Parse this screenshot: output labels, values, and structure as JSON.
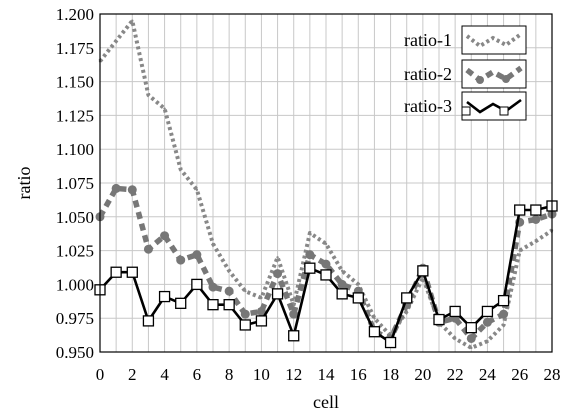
{
  "chart_data": {
    "type": "line",
    "xlabel": "cell",
    "ylabel": "ratio",
    "xlim": [
      0,
      28
    ],
    "ylim": [
      0.95,
      1.2
    ],
    "x_ticks": [
      0,
      2,
      4,
      6,
      8,
      10,
      12,
      14,
      16,
      18,
      20,
      22,
      24,
      26,
      28
    ],
    "y_ticks": [
      0.95,
      0.975,
      1.0,
      1.025,
      1.05,
      1.075,
      1.1,
      1.125,
      1.15,
      1.175,
      1.2
    ],
    "y_tick_labels": [
      "0.950",
      "0.975",
      "1.000",
      "1.025",
      "1.050",
      "1.075",
      "1.100",
      "1.125",
      "1.150",
      "1.175",
      "1.200"
    ],
    "grid": true,
    "legend_position": "top-right",
    "x": [
      0,
      1,
      2,
      3,
      4,
      5,
      6,
      7,
      8,
      9,
      10,
      11,
      12,
      13,
      14,
      15,
      16,
      17,
      18,
      19,
      20,
      21,
      22,
      23,
      24,
      25,
      26,
      27,
      28
    ],
    "series": [
      {
        "name": "ratio-1",
        "color": "#888888",
        "style": "dotted-thin",
        "values": [
          1.165,
          1.18,
          1.195,
          1.14,
          1.13,
          1.085,
          1.07,
          1.03,
          1.01,
          0.995,
          0.99,
          1.02,
          0.985,
          1.038,
          1.03,
          1.01,
          1.0,
          0.975,
          0.962,
          0.98,
          1.005,
          0.972,
          0.96,
          0.953,
          0.958,
          0.97,
          1.025,
          1.032,
          1.04
        ]
      },
      {
        "name": "ratio-2",
        "color": "#777777",
        "style": "dashed-thick-dots",
        "values": [
          1.05,
          1.071,
          1.07,
          1.026,
          1.036,
          1.018,
          1.022,
          0.998,
          0.995,
          0.978,
          0.98,
          1.008,
          0.978,
          1.022,
          1.015,
          1.0,
          0.995,
          0.965,
          0.96,
          0.985,
          1.012,
          0.972,
          0.975,
          0.96,
          0.972,
          0.978,
          1.046,
          1.048,
          1.052
        ]
      },
      {
        "name": "ratio-3",
        "color": "#000000",
        "style": "solid-squares",
        "values": [
          0.996,
          1.009,
          1.009,
          0.973,
          0.991,
          0.986,
          1.0,
          0.985,
          0.985,
          0.97,
          0.973,
          0.993,
          0.962,
          1.012,
          1.007,
          0.993,
          0.99,
          0.965,
          0.957,
          0.99,
          1.01,
          0.974,
          0.98,
          0.968,
          0.98,
          0.988,
          1.055,
          1.055,
          1.058
        ]
      }
    ]
  }
}
